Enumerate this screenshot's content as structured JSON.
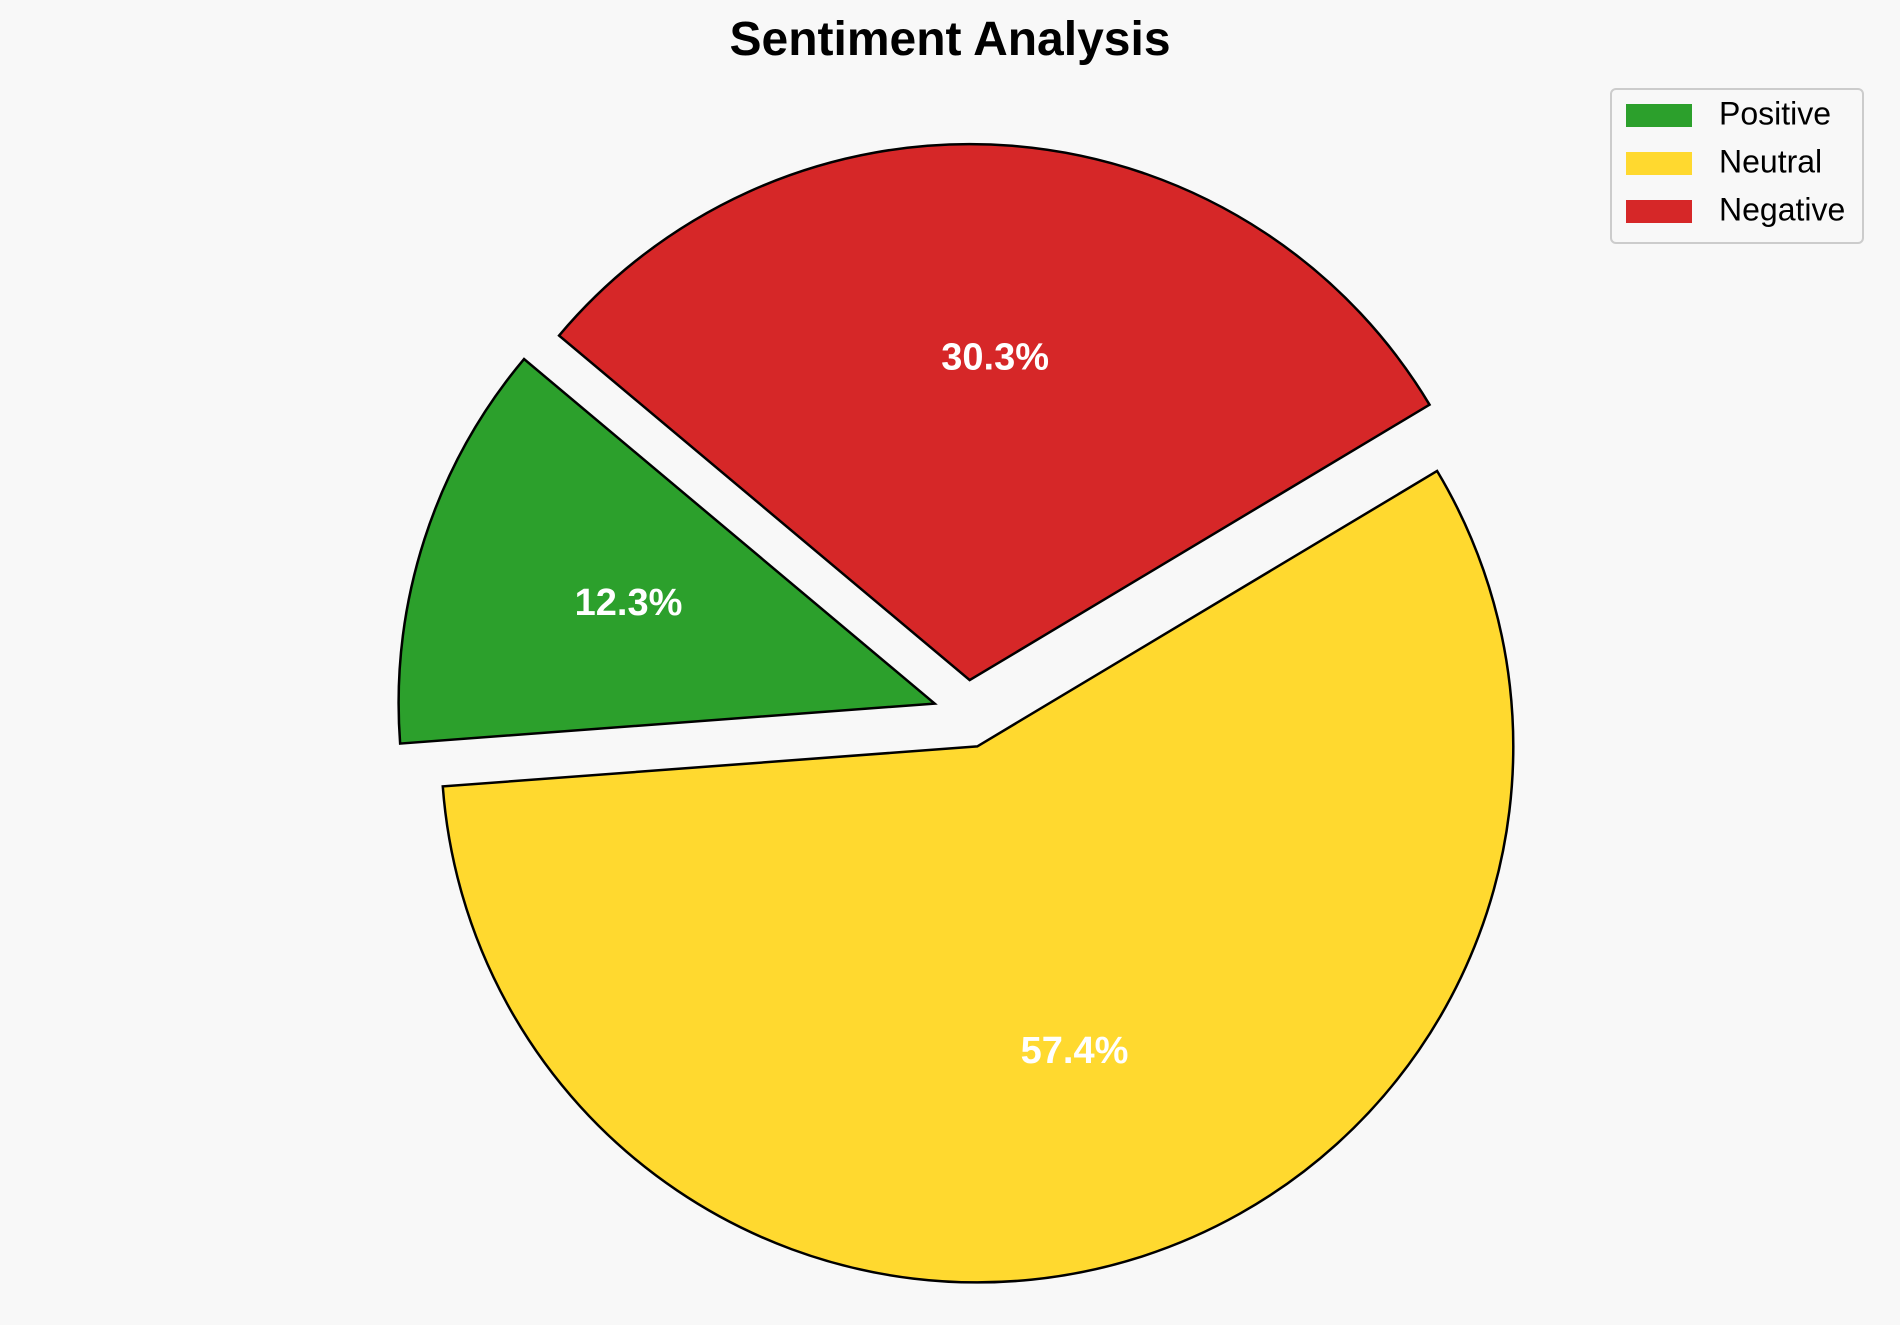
{
  "chart_data": {
    "type": "pie",
    "title": "Sentiment Analysis",
    "slices": [
      {
        "label": "Positive",
        "value": 12.3,
        "display": "12.3%",
        "color": "#2ca02c",
        "exploded": true
      },
      {
        "label": "Neutral",
        "value": 57.4,
        "display": "57.4%",
        "color": "#ffd92f",
        "exploded": true
      },
      {
        "label": "Negative",
        "value": 30.3,
        "display": "30.3%",
        "color": "#d62728",
        "exploded": true
      }
    ],
    "start_angle_deg": 140,
    "direction": "counterclockwise",
    "legend_position": "top-right",
    "edge_color": "#000000",
    "label_color": "#ffffff"
  }
}
